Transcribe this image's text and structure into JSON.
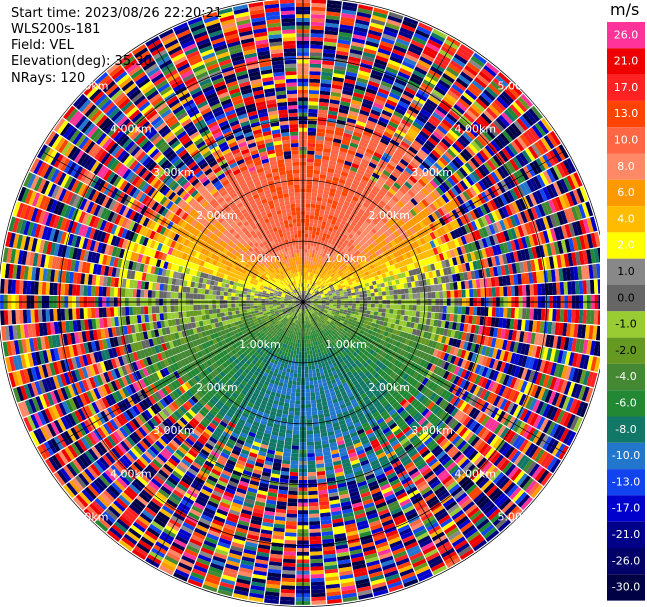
{
  "info": {
    "start_time": "Start time: 2023/08/26 22:20:21",
    "site": "WLS200s-181",
    "field": "Field: VEL",
    "elevation": "Elevation(deg): 35.30",
    "nrays": "NRays: 120"
  },
  "colorbar": {
    "unit": "m/s",
    "ticks": [
      "26.0",
      "21.0",
      "17.0",
      "13.0",
      "10.0",
      "8.0",
      "6.0",
      "4.0",
      "2.0",
      "1.0",
      "0.0",
      "-1.0",
      "-2.0",
      "-4.0",
      "-6.0",
      "-8.0",
      "-10.0",
      "-13.0",
      "-17.0",
      "-21.0",
      "-26.0",
      "-30.0"
    ],
    "colors": [
      "#ff3399",
      "#ee0000",
      "#ff2222",
      "#ff4400",
      "#ff6644",
      "#ff8866",
      "#ff9900",
      "#ffbb00",
      "#ffff00",
      "#888888",
      "#666666",
      "#99cc33",
      "#669922",
      "#448833",
      "#228833",
      "#117766",
      "#2277cc",
      "#1144ee",
      "#0000cc",
      "#000088",
      "#000066",
      "#000044"
    ]
  },
  "chart_data": {
    "type": "ppi",
    "field": "VEL",
    "units": "m/s",
    "nrays": 120,
    "range_rings_km": [
      1.0,
      2.0,
      3.0,
      4.0,
      5.0
    ],
    "ring_labels": [
      "1.00km",
      "2.00km",
      "3.00km",
      "4.00km",
      "5.00km"
    ],
    "max_range_km": 5.0,
    "vmin": -30.0,
    "vmax": 26.0,
    "velocity_structure": {
      "north_sector": "positive 6 to 17 m/s (orange-red), about 0.8 to 3.8 km",
      "east_west_band": "near zero, grey / yellow",
      "south_sector": "negative -4 to -10 m/s (green / blue), about 0.6 to 3.5 km",
      "beyond_about_3.8km": "noise (all colors)"
    }
  }
}
